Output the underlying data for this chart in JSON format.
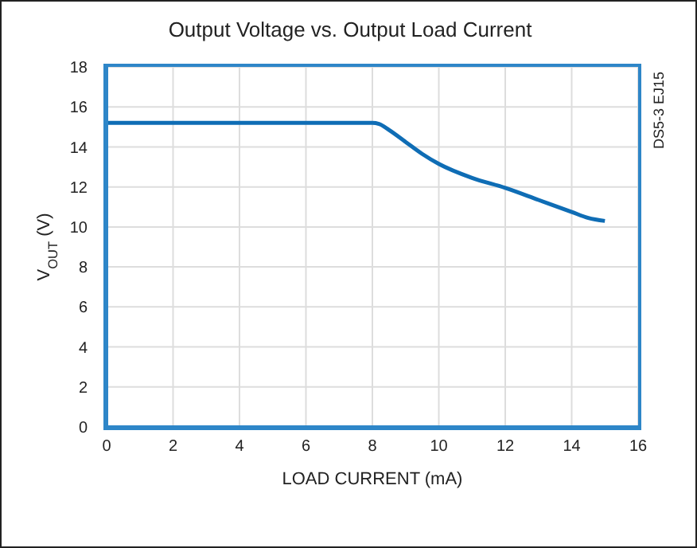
{
  "chart_data": {
    "type": "line",
    "title": "Output Voltage vs. Output Load Current",
    "xlabel": "LOAD CURRENT (mA)",
    "ylabel": "V$_{OUT}$ (V)",
    "annotations": [
      "DS5-3 EJ15"
    ],
    "x": [
      0,
      8,
      8.2,
      8.5,
      9,
      9.5,
      10,
      11,
      12,
      13,
      14,
      14.5,
      15
    ],
    "series": [
      {
        "color": "#0f6db5",
        "values": [
          15.2,
          15.2,
          15.15,
          14.85,
          14.25,
          13.65,
          13.15,
          12.45,
          11.95,
          11.35,
          10.75,
          10.45,
          10.3
        ]
      }
    ],
    "xlim": [
      0,
      16
    ],
    "xticks": [
      0,
      2,
      4,
      6,
      8,
      10,
      12,
      14,
      16
    ],
    "ylim": [
      0,
      18
    ],
    "yticks": [
      0,
      2,
      4,
      6,
      8,
      10,
      12,
      14,
      16,
      18
    ],
    "grid": true,
    "marker": "none",
    "line_style": "solid",
    "legend": false
  }
}
